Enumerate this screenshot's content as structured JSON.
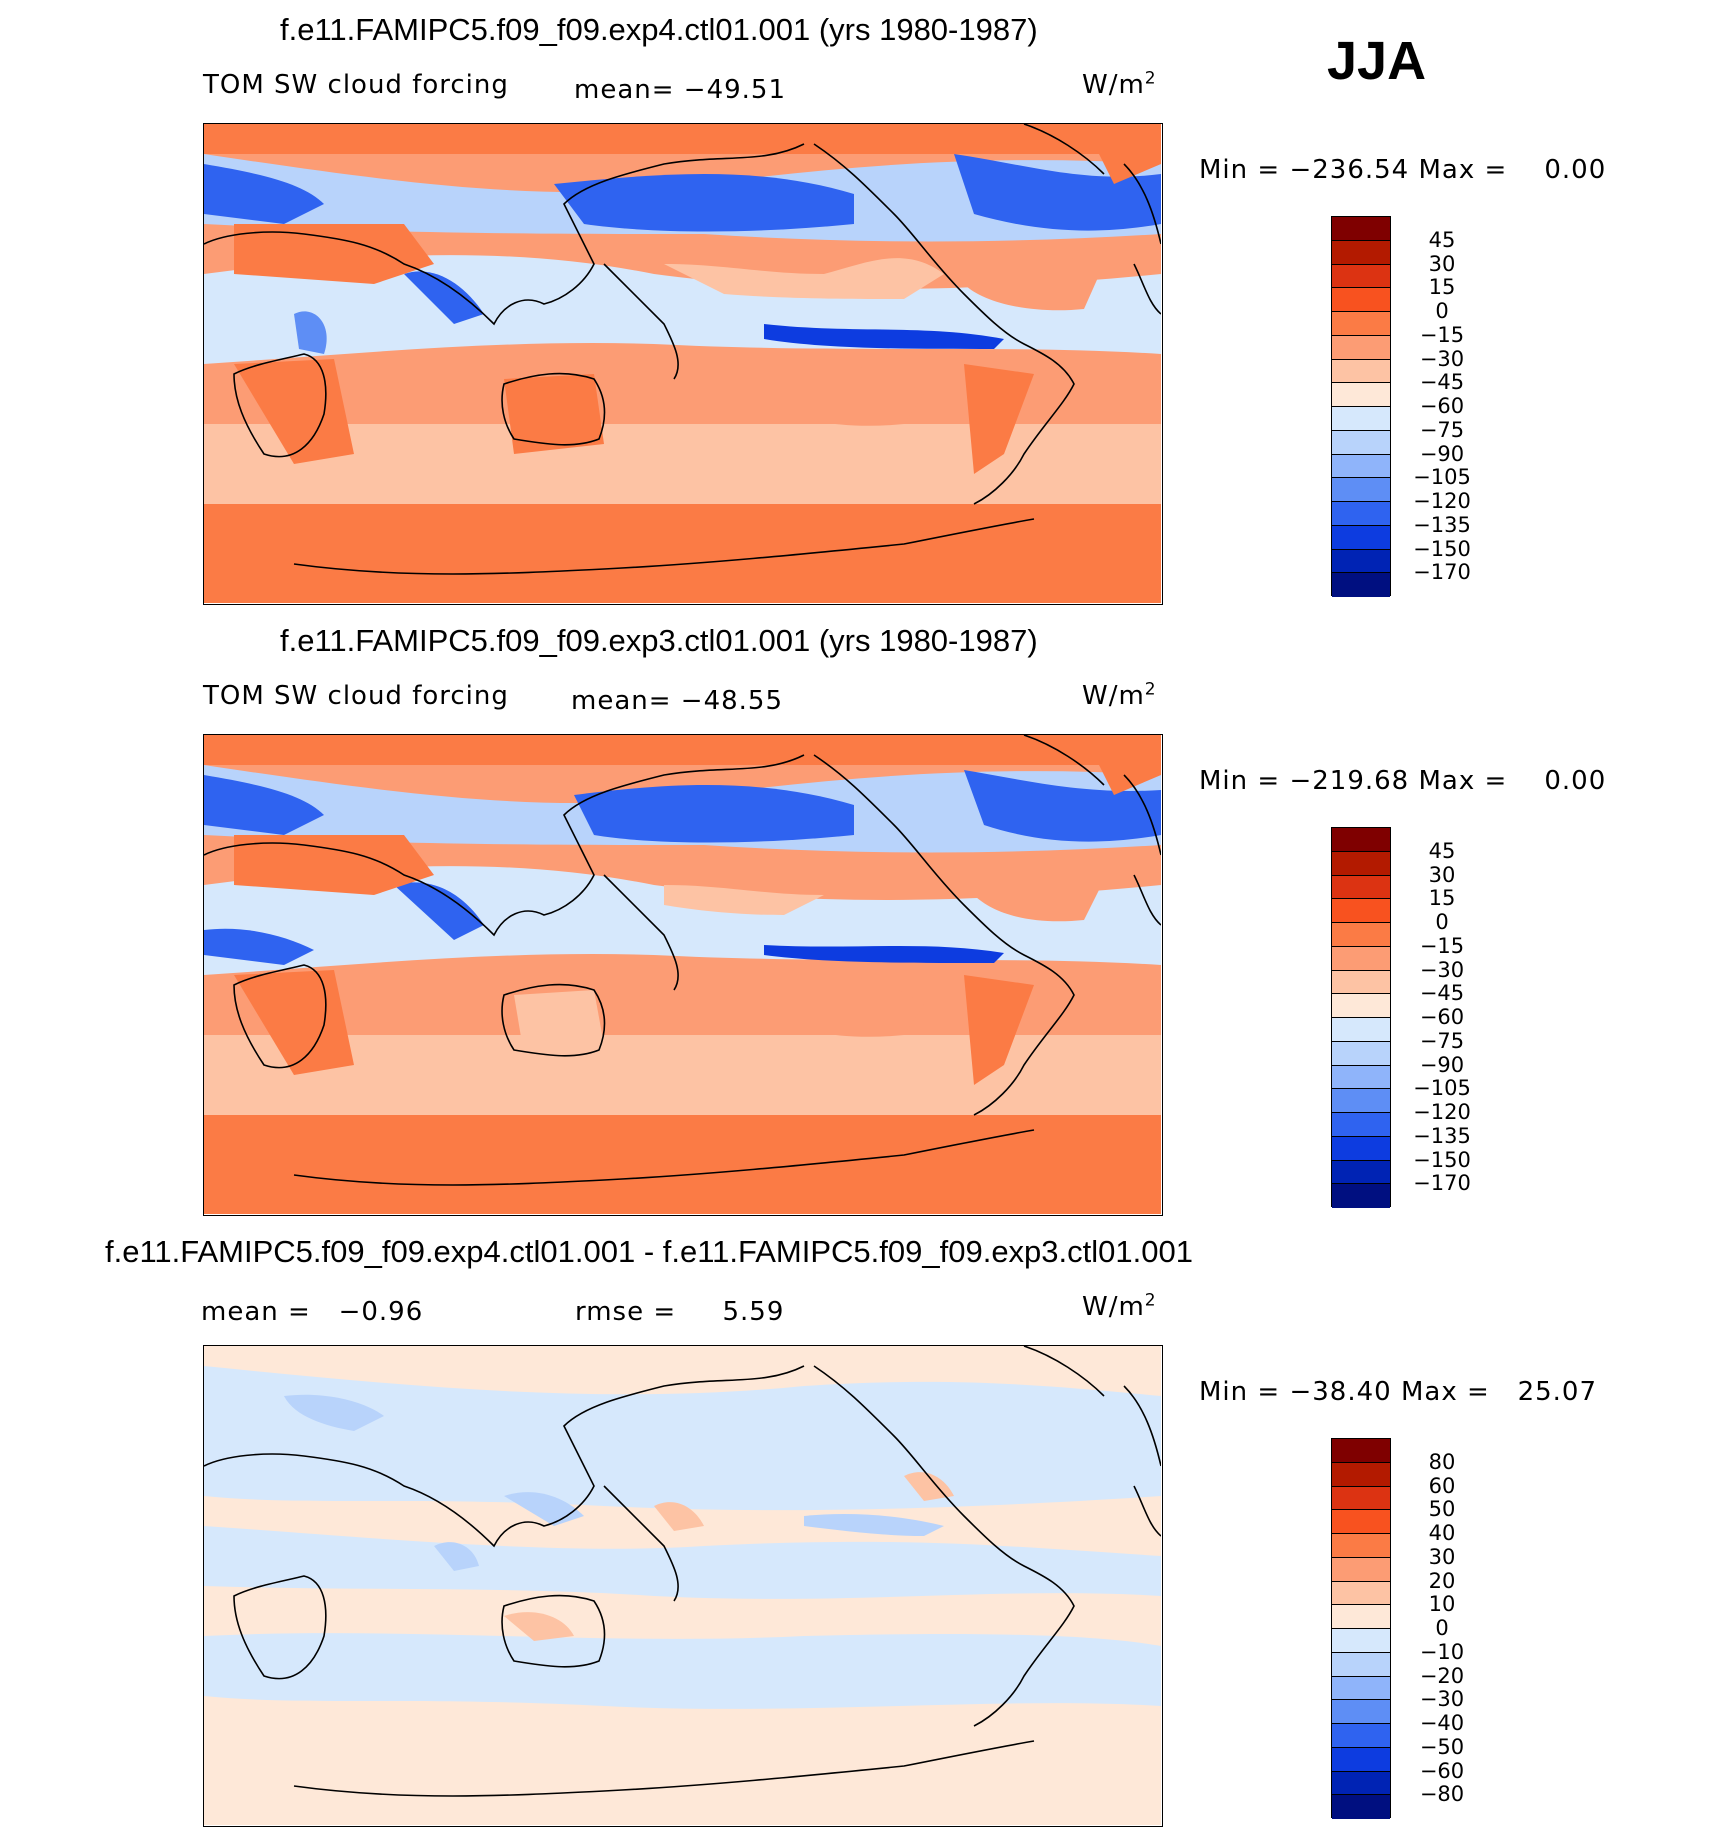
{
  "season": "JJA",
  "chart_data": [
    {
      "type": "heatmap",
      "title": "f.e11.FAMIPC5.f09_f09.exp4.ctl01.001 (yrs 1980-1987)",
      "variable": "TOM SW cloud forcing",
      "mean_label": "mean=",
      "mean": "−49.51",
      "units": "W/m",
      "units_exp": "2",
      "min_label": "Min",
      "min": "−236.54",
      "max_label": "Max",
      "max": "0.00",
      "levels": [
        "45",
        "30",
        "15",
        "0",
        "−15",
        "−30",
        "−45",
        "−60",
        "−75",
        "−90",
        "−105",
        "−120",
        "−135",
        "−150",
        "−170"
      ],
      "colors": [
        "#7f0000",
        "#b31a00",
        "#dc3312",
        "#f8521f",
        "#fb7b45",
        "#fc9c74",
        "#fdc3a4",
        "#fee8d8",
        "#d6e8fc",
        "#b8d3fb",
        "#8fb4fa",
        "#5e8ef5",
        "#2f63f0",
        "#0d3ce0",
        "#0023b4",
        "#000f80"
      ],
      "ocean_pattern": "negative over storm tracks and ITCZ, near zero over Southern Ocean and polar regions"
    },
    {
      "type": "heatmap",
      "title": "f.e11.FAMIPC5.f09_f09.exp3.ctl01.001 (yrs 1980-1987)",
      "variable": "TOM SW cloud forcing",
      "mean_label": "mean=",
      "mean": "−48.55",
      "units": "W/m",
      "units_exp": "2",
      "min_label": "Min",
      "min": "−219.68",
      "max_label": "Max",
      "max": "0.00",
      "levels": [
        "45",
        "30",
        "15",
        "0",
        "−15",
        "−30",
        "−45",
        "−60",
        "−75",
        "−90",
        "−105",
        "−120",
        "−135",
        "−150",
        "−170"
      ],
      "colors": [
        "#7f0000",
        "#b31a00",
        "#dc3312",
        "#f8521f",
        "#fb7b45",
        "#fc9c74",
        "#fdc3a4",
        "#fee8d8",
        "#d6e8fc",
        "#b8d3fb",
        "#8fb4fa",
        "#5e8ef5",
        "#2f63f0",
        "#0d3ce0",
        "#0023b4",
        "#000f80"
      ]
    },
    {
      "type": "heatmap",
      "title": "f.e11.FAMIPC5.f09_f09.exp4.ctl01.001 - f.e11.FAMIPC5.f09_f09.exp3.ctl01.001",
      "mean_label": "mean =",
      "mean": "−0.96",
      "rmse_label": "rmse =",
      "rmse": "5.59",
      "units": "W/m",
      "units_exp": "2",
      "min_label": "Min",
      "min": "−38.40",
      "max_label": "Max",
      "max": "25.07",
      "levels": [
        "80",
        "60",
        "50",
        "40",
        "30",
        "20",
        "10",
        "0",
        "−10",
        "−20",
        "−30",
        "−40",
        "−50",
        "−60",
        "−80"
      ],
      "colors": [
        "#7f0000",
        "#b31a00",
        "#dc3312",
        "#f8521f",
        "#fb7b45",
        "#fc9c74",
        "#fdc3a4",
        "#fee8d8",
        "#d6e8fc",
        "#b8d3fb",
        "#8fb4fa",
        "#5e8ef5",
        "#2f63f0",
        "#0d3ce0",
        "#0023b4",
        "#000f80"
      ]
    }
  ]
}
